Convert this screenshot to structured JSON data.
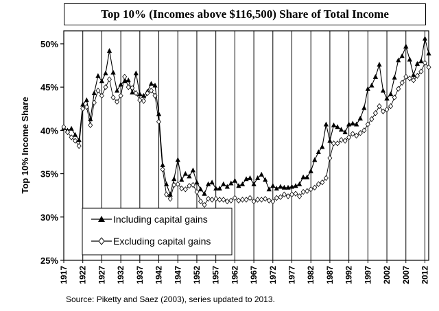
{
  "chart_data": {
    "type": "line",
    "title": "Top 10% (Incomes above $116,500) Share of Total Income",
    "ylabel": "Top 10% Income Share",
    "xlabel": "",
    "source": "Source: Piketty and Saez (2003), series updated to 2013.",
    "x_ticks": [
      1917,
      1922,
      1927,
      1932,
      1937,
      1942,
      1947,
      1952,
      1957,
      1962,
      1967,
      1972,
      1977,
      1982,
      1987,
      1992,
      1997,
      2002,
      2007,
      2012
    ],
    "y_ticks": [
      {
        "value": 25,
        "label": "25%"
      },
      {
        "value": 30,
        "label": "30%"
      },
      {
        "value": 35,
        "label": "35%"
      },
      {
        "value": 40,
        "label": "40%"
      },
      {
        "value": 45,
        "label": "45%"
      },
      {
        "value": 50,
        "label": "50%"
      }
    ],
    "xlim": [
      1917,
      2013
    ],
    "ylim": [
      25,
      51.5
    ],
    "grid": "vertical",
    "legend_position": "bottom-left",
    "x": [
      1917,
      1918,
      1919,
      1920,
      1921,
      1922,
      1923,
      1924,
      1925,
      1926,
      1927,
      1928,
      1929,
      1930,
      1931,
      1932,
      1933,
      1934,
      1935,
      1936,
      1937,
      1938,
      1939,
      1940,
      1941,
      1942,
      1943,
      1944,
      1945,
      1946,
      1947,
      1948,
      1949,
      1950,
      1951,
      1952,
      1953,
      1954,
      1955,
      1956,
      1957,
      1958,
      1959,
      1960,
      1961,
      1962,
      1963,
      1964,
      1965,
      1966,
      1967,
      1968,
      1969,
      1970,
      1971,
      1972,
      1973,
      1974,
      1975,
      1976,
      1977,
      1978,
      1979,
      1980,
      1981,
      1982,
      1983,
      1984,
      1985,
      1986,
      1987,
      1988,
      1989,
      1990,
      1991,
      1992,
      1993,
      1994,
      1995,
      1996,
      1997,
      1998,
      1999,
      2000,
      2001,
      2002,
      2003,
      2004,
      2005,
      2006,
      2007,
      2008,
      2009,
      2010,
      2011,
      2012,
      2013
    ],
    "series": [
      {
        "name": "Including capital gains",
        "marker": "triangle",
        "color": "#000000",
        "values": [
          40.3,
          40.0,
          40.2,
          39.5,
          38.9,
          43.0,
          43.5,
          41.3,
          44.3,
          46.3,
          45.7,
          46.6,
          49.2,
          46.7,
          44.6,
          45.3,
          45.7,
          45.8,
          44.4,
          46.6,
          44.2,
          44.0,
          44.5,
          45.4,
          45.2,
          41.9,
          36.0,
          33.8,
          32.6,
          34.4,
          36.6,
          34.3,
          35.0,
          34.7,
          35.4,
          34.0,
          33.2,
          32.7,
          33.8,
          34.0,
          33.3,
          33.3,
          33.8,
          33.5,
          33.9,
          34.2,
          33.6,
          33.8,
          34.4,
          34.5,
          33.8,
          34.5,
          34.9,
          34.3,
          33.2,
          33.6,
          33.3,
          33.5,
          33.4,
          33.4,
          33.5,
          33.6,
          33.8,
          34.6,
          34.6,
          35.3,
          36.6,
          37.5,
          38.1,
          40.7,
          38.8,
          40.6,
          40.4,
          40.1,
          39.8,
          40.7,
          40.8,
          40.7,
          41.4,
          42.6,
          44.8,
          45.2,
          46.2,
          47.6,
          44.6,
          43.7,
          44.2,
          46.1,
          48.1,
          48.6,
          49.7,
          48.2,
          46.4,
          47.7,
          48.0,
          50.6,
          48.9
        ]
      },
      {
        "name": "Excluding capital gains",
        "marker": "diamond",
        "color": "#000000",
        "values": [
          40.4,
          39.8,
          39.2,
          38.8,
          38.2,
          42.5,
          42.7,
          40.6,
          43.2,
          44.6,
          44.0,
          45.0,
          45.9,
          43.8,
          43.3,
          44.0,
          46.2,
          45.0,
          44.9,
          44.3,
          43.5,
          43.4,
          44.3,
          44.6,
          44.0,
          41.0,
          35.5,
          32.6,
          32.1,
          33.7,
          33.8,
          33.3,
          33.2,
          33.6,
          33.7,
          32.9,
          31.8,
          31.4,
          32.1,
          32.0,
          32.1,
          32.0,
          32.0,
          31.8,
          31.9,
          32.2,
          31.9,
          32.0,
          32.0,
          32.2,
          31.8,
          32.0,
          32.0,
          32.1,
          31.9,
          31.8,
          32.2,
          32.3,
          32.6,
          32.4,
          32.6,
          32.7,
          32.4,
          32.9,
          33.0,
          33.2,
          33.4,
          33.8,
          34.0,
          34.5,
          36.8,
          38.5,
          38.5,
          38.9,
          38.8,
          39.2,
          39.6,
          39.4,
          39.7,
          40.0,
          40.7,
          41.3,
          42.0,
          42.8,
          42.2,
          42.4,
          42.8,
          43.8,
          44.8,
          45.5,
          46.2,
          46.0,
          45.8,
          46.3,
          46.8,
          47.8,
          47.3
        ]
      }
    ]
  }
}
